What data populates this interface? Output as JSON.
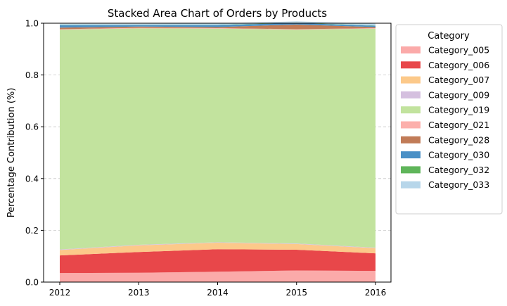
{
  "chart_data": {
    "type": "area",
    "stacked": true,
    "title": "Stacked Area Chart of Orders by Products",
    "xlabel": "",
    "ylabel": "Percentage Contribution (%)",
    "x": [
      "2012",
      "2013",
      "2014",
      "2015",
      "2016"
    ],
    "ylim": [
      0,
      1.0
    ],
    "yticks": [
      "0.0",
      "0.2",
      "0.4",
      "0.6",
      "0.8",
      "1.0"
    ],
    "grid": "y-dashed",
    "legend": {
      "title": "Category",
      "placement": "outside-right"
    },
    "series": [
      {
        "name": "Category_005",
        "color": "#fbaaa9",
        "values": [
          0.035,
          0.036,
          0.04,
          0.045,
          0.043
        ]
      },
      {
        "name": "Category_006",
        "color": "#e8474a",
        "values": [
          0.068,
          0.08,
          0.087,
          0.08,
          0.068
        ]
      },
      {
        "name": "Category_007",
        "color": "#fcc98a",
        "values": [
          0.021,
          0.026,
          0.025,
          0.022,
          0.02
        ]
      },
      {
        "name": "Category_009",
        "color": "#d5c0df",
        "values": [
          0.002,
          0.002,
          0.002,
          0.002,
          0.002
        ]
      },
      {
        "name": "Category_019",
        "color": "#c2e39e",
        "values": [
          0.849,
          0.836,
          0.825,
          0.826,
          0.846
        ]
      },
      {
        "name": "Category_021",
        "color": "#fcb0ac",
        "values": [
          0.002,
          0.002,
          0.002,
          0.002,
          0.002
        ]
      },
      {
        "name": "Category_028",
        "color": "#c17b57",
        "values": [
          0.006,
          0.005,
          0.004,
          0.018,
          0.004
        ]
      },
      {
        "name": "Category_030",
        "color": "#4a90c6",
        "values": [
          0.009,
          0.006,
          0.008,
          0.006,
          0.005
        ]
      },
      {
        "name": "Category_032",
        "color": "#5fb55a",
        "values": [
          0.001,
          0.001,
          0.001,
          0.001,
          0.001
        ]
      },
      {
        "name": "Category_033",
        "color": "#b7d6ea",
        "values": [
          0.005,
          0.004,
          0.005,
          0.005,
          0.007
        ]
      }
    ]
  }
}
